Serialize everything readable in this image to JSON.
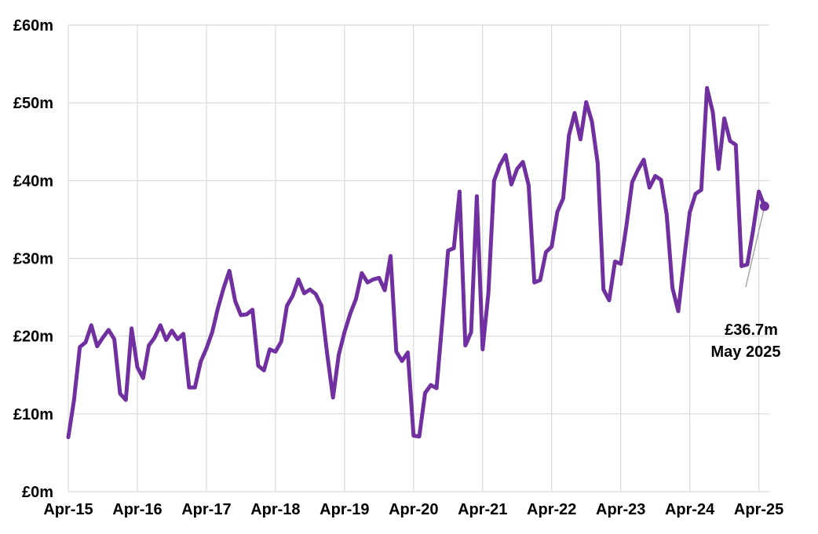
{
  "chart_data": {
    "type": "line",
    "title": "",
    "xlabel": "",
    "ylabel": "",
    "y_tick_labels": [
      "£0m",
      "£10m",
      "£20m",
      "£30m",
      "£40m",
      "£50m",
      "£60m"
    ],
    "y_tick_values": [
      0,
      10,
      20,
      30,
      40,
      50,
      60
    ],
    "ylim": [
      0,
      60
    ],
    "x_tick_labels": [
      "Apr-15",
      "Apr-16",
      "Apr-17",
      "Apr-18",
      "Apr-19",
      "Apr-20",
      "Apr-21",
      "Apr-22",
      "Apr-23",
      "Apr-24",
      "Apr-25"
    ],
    "x_start": "Apr-15",
    "x_end": "May-25",
    "grid": true,
    "series": [
      {
        "color": "#7030a0",
        "x": [
          "Apr-15",
          "May-15",
          "Jun-15",
          "Jul-15",
          "Aug-15",
          "Sep-15",
          "Oct-15",
          "Nov-15",
          "Dec-15",
          "Jan-16",
          "Feb-16",
          "Mar-16",
          "Apr-16",
          "May-16",
          "Jun-16",
          "Jul-16",
          "Aug-16",
          "Sep-16",
          "Oct-16",
          "Nov-16",
          "Dec-16",
          "Jan-17",
          "Feb-17",
          "Mar-17",
          "Apr-17",
          "May-17",
          "Jun-17",
          "Jul-17",
          "Aug-17",
          "Sep-17",
          "Oct-17",
          "Nov-17",
          "Dec-17",
          "Jan-18",
          "Feb-18",
          "Mar-18",
          "Apr-18",
          "May-18",
          "Jun-18",
          "Jul-18",
          "Aug-18",
          "Sep-18",
          "Oct-18",
          "Nov-18",
          "Dec-18",
          "Jan-19",
          "Feb-19",
          "Mar-19",
          "Apr-19",
          "May-19",
          "Jun-19",
          "Jul-19",
          "Aug-19",
          "Sep-19",
          "Oct-19",
          "Nov-19",
          "Dec-19",
          "Jan-20",
          "Feb-20",
          "Mar-20",
          "Apr-20",
          "May-20",
          "Jun-20",
          "Jul-20",
          "Aug-20",
          "Sep-20",
          "Oct-20",
          "Nov-20",
          "Dec-20",
          "Jan-21",
          "Feb-21",
          "Mar-21",
          "Apr-21",
          "May-21",
          "Jun-21",
          "Jul-21",
          "Aug-21",
          "Sep-21",
          "Oct-21",
          "Nov-21",
          "Dec-21",
          "Jan-22",
          "Feb-22",
          "Mar-22",
          "Apr-22",
          "May-22",
          "Jun-22",
          "Jul-22",
          "Aug-22",
          "Sep-22",
          "Oct-22",
          "Nov-22",
          "Dec-22",
          "Jan-23",
          "Feb-23",
          "Mar-23",
          "Apr-23",
          "May-23",
          "Jun-23",
          "Jul-23",
          "Aug-23",
          "Sep-23",
          "Oct-23",
          "Nov-23",
          "Dec-23",
          "Jan-24",
          "Feb-24",
          "Mar-24",
          "Apr-24",
          "May-24",
          "Jun-24",
          "Jul-24",
          "Aug-24",
          "Sep-24",
          "Oct-24",
          "Nov-24",
          "Dec-24",
          "Jan-25",
          "Feb-25",
          "Mar-25",
          "Apr-25",
          "May-25"
        ],
        "values": [
          7.0,
          11.8,
          18.6,
          19.2,
          21.4,
          18.7,
          19.8,
          20.8,
          19.6,
          12.6,
          11.8,
          21.0,
          16.0,
          14.6,
          18.8,
          19.8,
          21.4,
          19.5,
          20.7,
          19.6,
          20.3,
          13.4,
          13.4,
          16.7,
          18.4,
          20.5,
          23.6,
          26.2,
          28.4,
          24.5,
          22.7,
          22.8,
          23.4,
          16.2,
          15.6,
          18.3,
          18.0,
          19.3,
          23.9,
          25.2,
          27.3,
          25.5,
          26.0,
          25.4,
          23.9,
          17.6,
          12.1,
          17.6,
          20.5,
          22.9,
          24.8,
          28.1,
          26.9,
          27.3,
          27.5,
          25.9,
          30.3,
          18.0,
          16.8,
          17.9,
          7.2,
          7.1,
          12.7,
          13.7,
          13.3,
          22.0,
          31.0,
          31.3,
          38.6,
          18.8,
          20.5,
          38.0,
          18.3,
          25.5,
          40.0,
          42.0,
          43.3,
          39.5,
          41.5,
          42.4,
          39.4,
          26.9,
          27.2,
          30.8,
          31.5,
          36.0,
          37.7,
          45.8,
          48.7,
          45.3,
          50.1,
          47.6,
          42.2,
          26.0,
          24.6,
          29.6,
          29.3,
          34.2,
          39.8,
          41.4,
          42.7,
          39.1,
          40.6,
          40.1,
          35.6,
          26.2,
          23.2,
          29.7,
          35.9,
          38.3,
          38.8,
          51.9,
          48.8,
          41.5,
          48.0,
          45.1,
          44.6,
          29.0,
          29.2,
          33.6,
          38.6,
          36.7
        ]
      }
    ],
    "annotation": {
      "value_label": "£36.7m",
      "date_label": "May 2025",
      "point_value": 36.7,
      "point_x": "May-25"
    }
  }
}
